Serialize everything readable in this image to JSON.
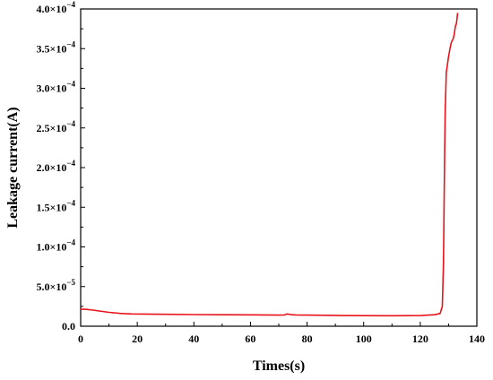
{
  "chart_data": {
    "type": "line",
    "xlabel": "Times(s)",
    "ylabel": "Leakage current(A)",
    "xlim": [
      0,
      140
    ],
    "ylim": [
      0,
      0.0004
    ],
    "xticks": [
      0,
      20,
      40,
      60,
      80,
      100,
      120,
      140
    ],
    "xtick_labels": [
      "0",
      "20",
      "40",
      "60",
      "80",
      "100",
      "120",
      "140"
    ],
    "yticks": [
      0,
      5e-05,
      0.0001,
      0.00015,
      0.0002,
      0.00025,
      0.0003,
      0.00035,
      0.0004
    ],
    "ytick_labels": [
      {
        "mant": "0.0",
        "exp": ""
      },
      {
        "mant": "5.0×10",
        "exp": "−5"
      },
      {
        "mant": "1.0×10",
        "exp": "−4"
      },
      {
        "mant": "1.5×10",
        "exp": "−4"
      },
      {
        "mant": "2.0×10",
        "exp": "−4"
      },
      {
        "mant": "2.5×10",
        "exp": "−4"
      },
      {
        "mant": "3.0×10",
        "exp": "−4"
      },
      {
        "mant": "3.5×10",
        "exp": "−4"
      },
      {
        "mant": "4.0×10",
        "exp": "−4"
      }
    ],
    "grid": false,
    "series": [
      {
        "color": "#e8141c",
        "x": [
          0,
          2,
          4,
          6,
          8,
          10,
          14,
          18,
          22,
          30,
          40,
          50,
          60,
          70,
          72,
          73,
          74,
          76,
          80,
          90,
          100,
          110,
          120,
          125,
          127,
          127.8,
          128.2,
          128.5,
          128.8,
          129.2,
          129.6,
          130,
          130.5,
          131,
          131.6,
          132,
          132.4,
          132.8,
          133.2
        ],
        "y": [
          2.15e-05,
          2.13e-05,
          2.05e-05,
          1.95e-05,
          1.85e-05,
          1.75e-05,
          1.62e-05,
          1.55e-05,
          1.53e-05,
          1.5e-05,
          1.47e-05,
          1.45e-05,
          1.43e-05,
          1.4e-05,
          1.42e-05,
          1.55e-05,
          1.48e-05,
          1.42e-05,
          1.4e-05,
          1.36e-05,
          1.33e-05,
          1.32e-05,
          1.35e-05,
          1.45e-05,
          1.6e-05,
          2.5e-05,
          8e-05,
          0.00018,
          0.00027,
          0.00032,
          0.00033,
          0.00034,
          0.00035,
          0.000358,
          0.000362,
          0.000368,
          0.000378,
          0.000382,
          0.000395
        ]
      }
    ]
  }
}
